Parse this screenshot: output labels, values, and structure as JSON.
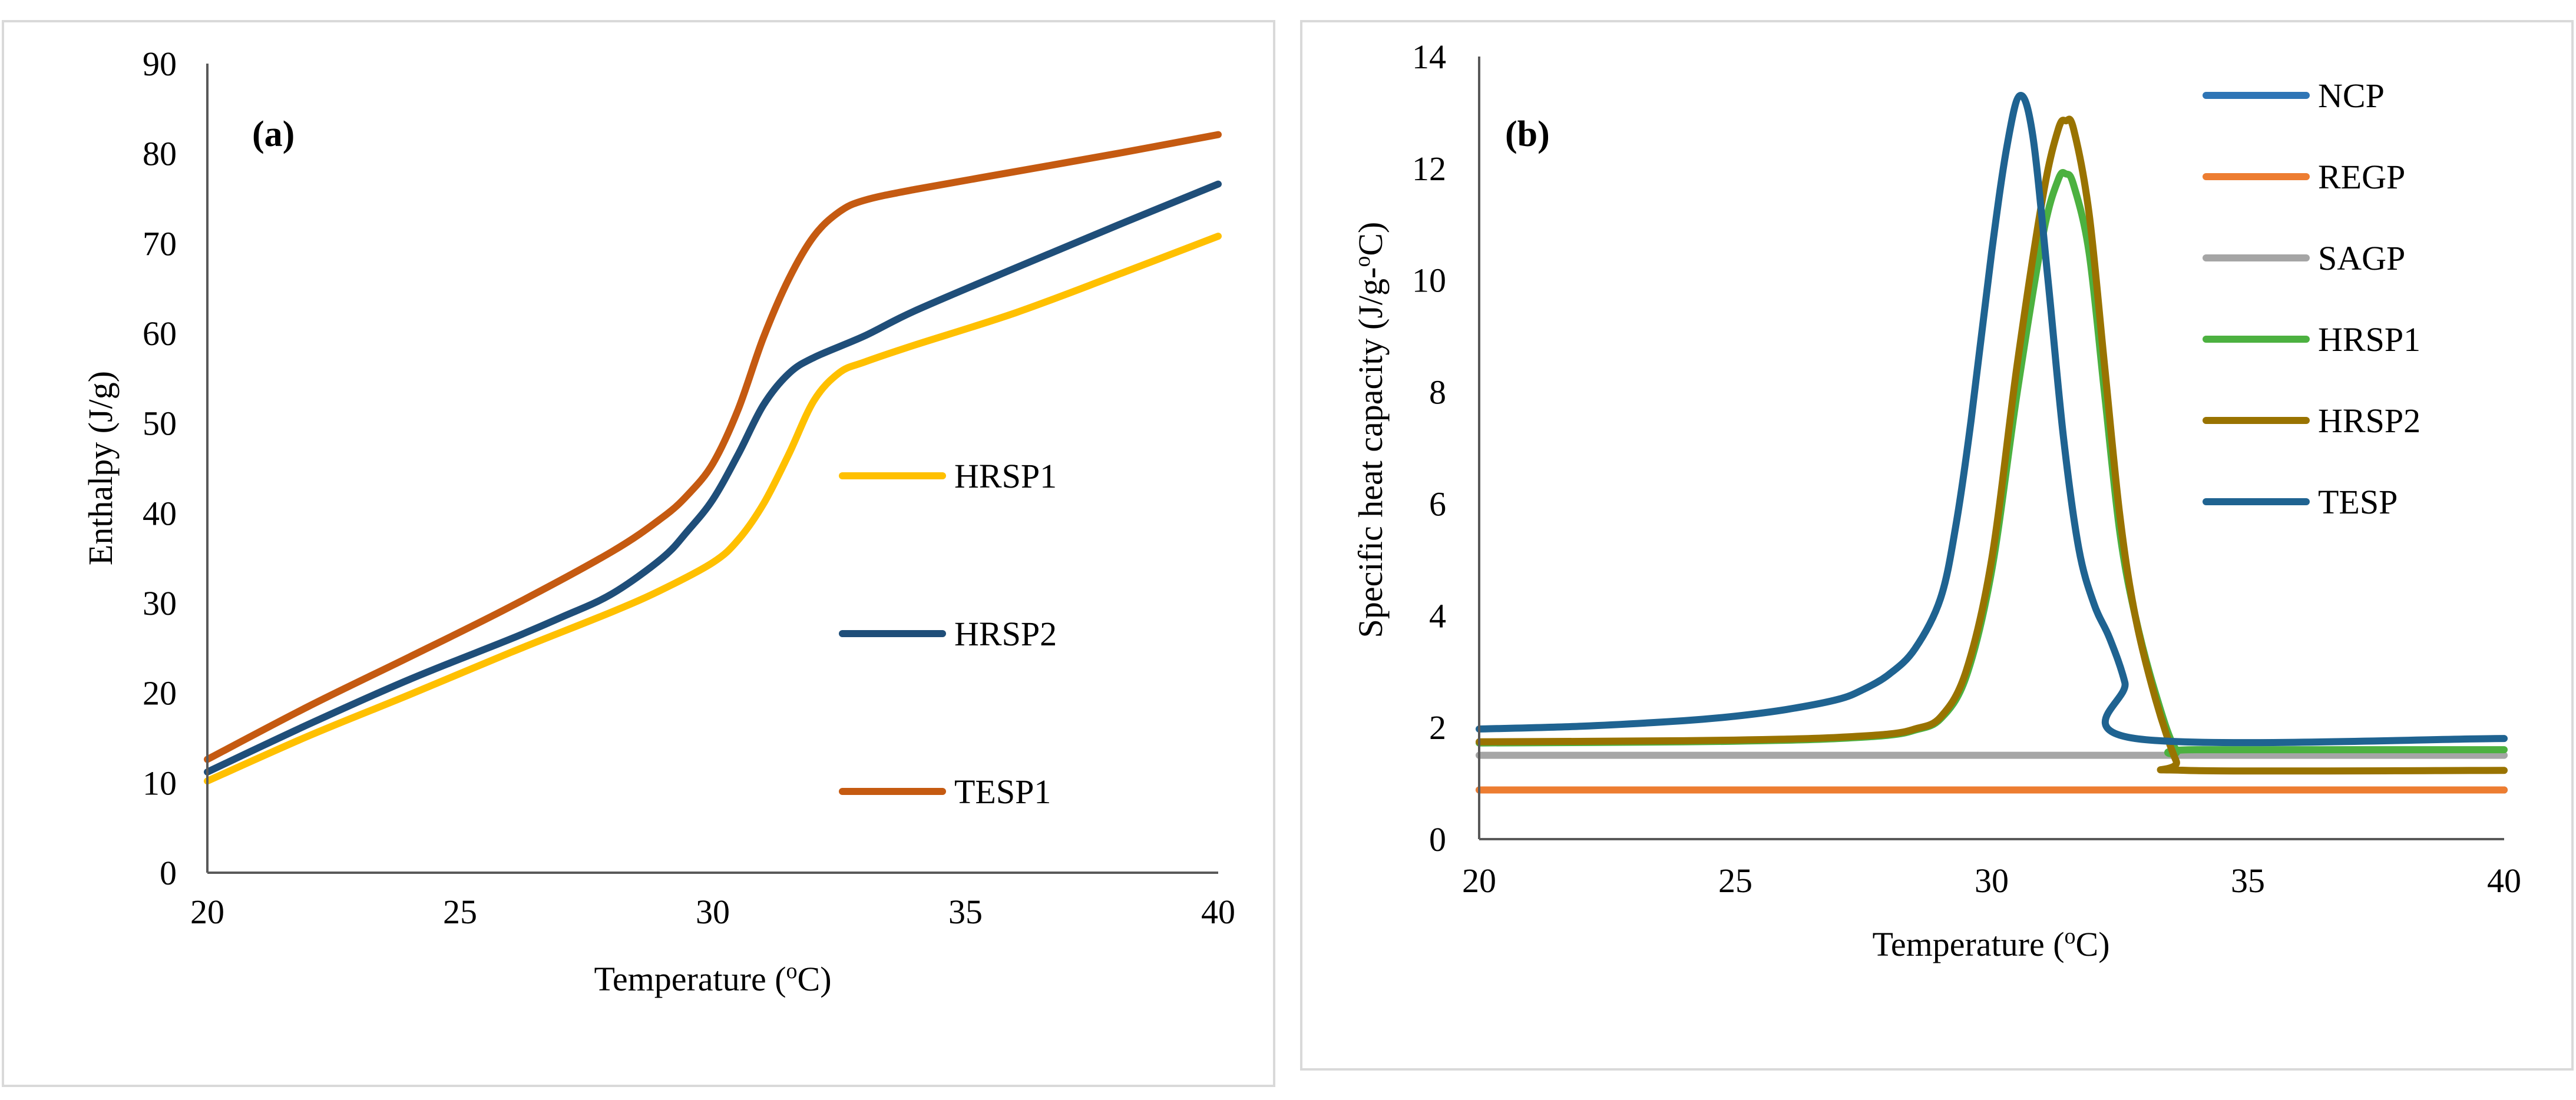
{
  "chart_data": [
    {
      "type": "line",
      "panel_label": "(a)",
      "xlabel": "Temperature (",
      "xlabel_sup": "o",
      "xlabel_end": "C)",
      "ylabel": "Enthalpy (J/g)",
      "xlim": [
        20,
        40
      ],
      "ylim": [
        0,
        90
      ],
      "x_ticks": [
        "20",
        "25",
        "30",
        "35",
        "40"
      ],
      "y_ticks": [
        "0",
        "10",
        "20",
        "30",
        "40",
        "50",
        "60",
        "70",
        "80",
        "90"
      ],
      "grid": false,
      "legend_position": "right, inside plot",
      "series": [
        {
          "name": "HRSP1",
          "color": "#FFC000",
          "points": [
            [
              20,
              10.2
            ],
            [
              22,
              15.2
            ],
            [
              24,
              19.8
            ],
            [
              26,
              24.5
            ],
            [
              28,
              29.0
            ],
            [
              29,
              31.5
            ],
            [
              30,
              34.5
            ],
            [
              30.5,
              37.0
            ],
            [
              31,
              41.0
            ],
            [
              31.5,
              46.5
            ],
            [
              32,
              52.5
            ],
            [
              32.5,
              55.6
            ],
            [
              33,
              56.8
            ],
            [
              34,
              58.7
            ],
            [
              36,
              62.3
            ],
            [
              38,
              66.5
            ],
            [
              40,
              70.8
            ]
          ]
        },
        {
          "name": "HRSP2",
          "color": "#1F4E79",
          "points": [
            [
              20,
              11.2
            ],
            [
              22,
              16.5
            ],
            [
              24,
              21.5
            ],
            [
              26,
              26.0
            ],
            [
              27,
              28.4
            ],
            [
              28,
              31.0
            ],
            [
              29,
              35.0
            ],
            [
              29.5,
              38.0
            ],
            [
              30,
              41.5
            ],
            [
              30.5,
              46.5
            ],
            [
              31,
              52.0
            ],
            [
              31.5,
              55.5
            ],
            [
              32,
              57.3
            ],
            [
              33,
              59.7
            ],
            [
              34,
              62.5
            ],
            [
              36,
              67.3
            ],
            [
              38,
              72.0
            ],
            [
              40,
              76.6
            ]
          ]
        },
        {
          "name": "TESP1",
          "color": "#C55A11",
          "points": [
            [
              20,
              12.6
            ],
            [
              22,
              18.5
            ],
            [
              24,
              24.0
            ],
            [
              26,
              29.6
            ],
            [
              28,
              35.7
            ],
            [
              29,
              39.5
            ],
            [
              29.5,
              42.0
            ],
            [
              30,
              45.5
            ],
            [
              30.5,
              51.5
            ],
            [
              31,
              59.5
            ],
            [
              31.5,
              66.0
            ],
            [
              32,
              70.8
            ],
            [
              32.5,
              73.5
            ],
            [
              33,
              74.8
            ],
            [
              34,
              76.0
            ],
            [
              36,
              78.0
            ],
            [
              38,
              80.0
            ],
            [
              40,
              82.1
            ]
          ]
        }
      ]
    },
    {
      "type": "line",
      "panel_label": "(b)",
      "xlabel": "Temperature (",
      "xlabel_sup": "o",
      "xlabel_end": "C)",
      "ylabel": "Specific heat capacity (J/g-",
      "ylabel_sup": "o",
      "ylabel_end": "C)",
      "xlim": [
        20,
        40
      ],
      "ylim": [
        0,
        14
      ],
      "x_ticks": [
        "20",
        "25",
        "30",
        "35",
        "40"
      ],
      "y_ticks": [
        "0",
        "2",
        "4",
        "6",
        "8",
        "10",
        "12",
        "14"
      ],
      "grid": false,
      "legend_position": "top-right",
      "series": [
        {
          "name": "NCP",
          "color": "#2E75B6",
          "points": [
            [
              20,
              0.88
            ],
            [
              40,
              0.88
            ]
          ]
        },
        {
          "name": "REGP",
          "color": "#ED7D31",
          "points": [
            [
              20,
              0.88
            ],
            [
              40,
              0.88
            ]
          ]
        },
        {
          "name": "SAGP",
          "color": "#A5A5A5",
          "points": [
            [
              20,
              1.5
            ],
            [
              40,
              1.5
            ]
          ]
        },
        {
          "name": "HRSP1",
          "color": "#4CB140",
          "points": [
            [
              20,
              1.72
            ],
            [
              24,
              1.74
            ],
            [
              26,
              1.77
            ],
            [
              27,
              1.8
            ],
            [
              28,
              1.86
            ],
            [
              28.5,
              1.95
            ],
            [
              29,
              2.15
            ],
            [
              29.5,
              2.9
            ],
            [
              30,
              4.8
            ],
            [
              30.5,
              8.0
            ],
            [
              31,
              10.8
            ],
            [
              31.3,
              11.8
            ],
            [
              31.45,
              11.9
            ],
            [
              31.6,
              11.7
            ],
            [
              31.9,
              10.5
            ],
            [
              32.2,
              8.0
            ],
            [
              32.5,
              5.5
            ],
            [
              32.8,
              4.0
            ],
            [
              33.2,
              2.6
            ],
            [
              33.6,
              1.6
            ],
            [
              34,
              1.6
            ],
            [
              40,
              1.6
            ]
          ]
        },
        {
          "name": "HRSP2",
          "color": "#997300",
          "points": [
            [
              20,
              1.74
            ],
            [
              24,
              1.76
            ],
            [
              26,
              1.79
            ],
            [
              27,
              1.82
            ],
            [
              28,
              1.88
            ],
            [
              28.5,
              1.97
            ],
            [
              29,
              2.18
            ],
            [
              29.5,
              3.0
            ],
            [
              30,
              5.0
            ],
            [
              30.5,
              8.5
            ],
            [
              31,
              11.5
            ],
            [
              31.3,
              12.7
            ],
            [
              31.45,
              12.85
            ],
            [
              31.6,
              12.7
            ],
            [
              31.9,
              11.2
            ],
            [
              32.2,
              8.5
            ],
            [
              32.5,
              5.8
            ],
            [
              32.8,
              4.0
            ],
            [
              33.2,
              2.5
            ],
            [
              33.6,
              1.4
            ],
            [
              33.8,
              1.23
            ],
            [
              40,
              1.23
            ]
          ]
        },
        {
          "name": "TESP",
          "color": "#1F6391",
          "points": [
            [
              20,
              1.97
            ],
            [
              22,
              2.02
            ],
            [
              24,
              2.12
            ],
            [
              25,
              2.2
            ],
            [
              26,
              2.32
            ],
            [
              27,
              2.5
            ],
            [
              27.5,
              2.68
            ],
            [
              28,
              2.95
            ],
            [
              28.5,
              3.4
            ],
            [
              29,
              4.3
            ],
            [
              29.3,
              5.6
            ],
            [
              29.6,
              7.5
            ],
            [
              30,
              10.5
            ],
            [
              30.3,
              12.4
            ],
            [
              30.55,
              13.3
            ],
            [
              30.8,
              12.6
            ],
            [
              31.1,
              10.0
            ],
            [
              31.4,
              7.2
            ],
            [
              31.7,
              5.2
            ],
            [
              32,
              4.2
            ],
            [
              32.3,
              3.6
            ],
            [
              32.6,
              2.8
            ],
            [
              32.8,
              1.8
            ],
            [
              40,
              1.8
            ]
          ]
        }
      ]
    }
  ]
}
